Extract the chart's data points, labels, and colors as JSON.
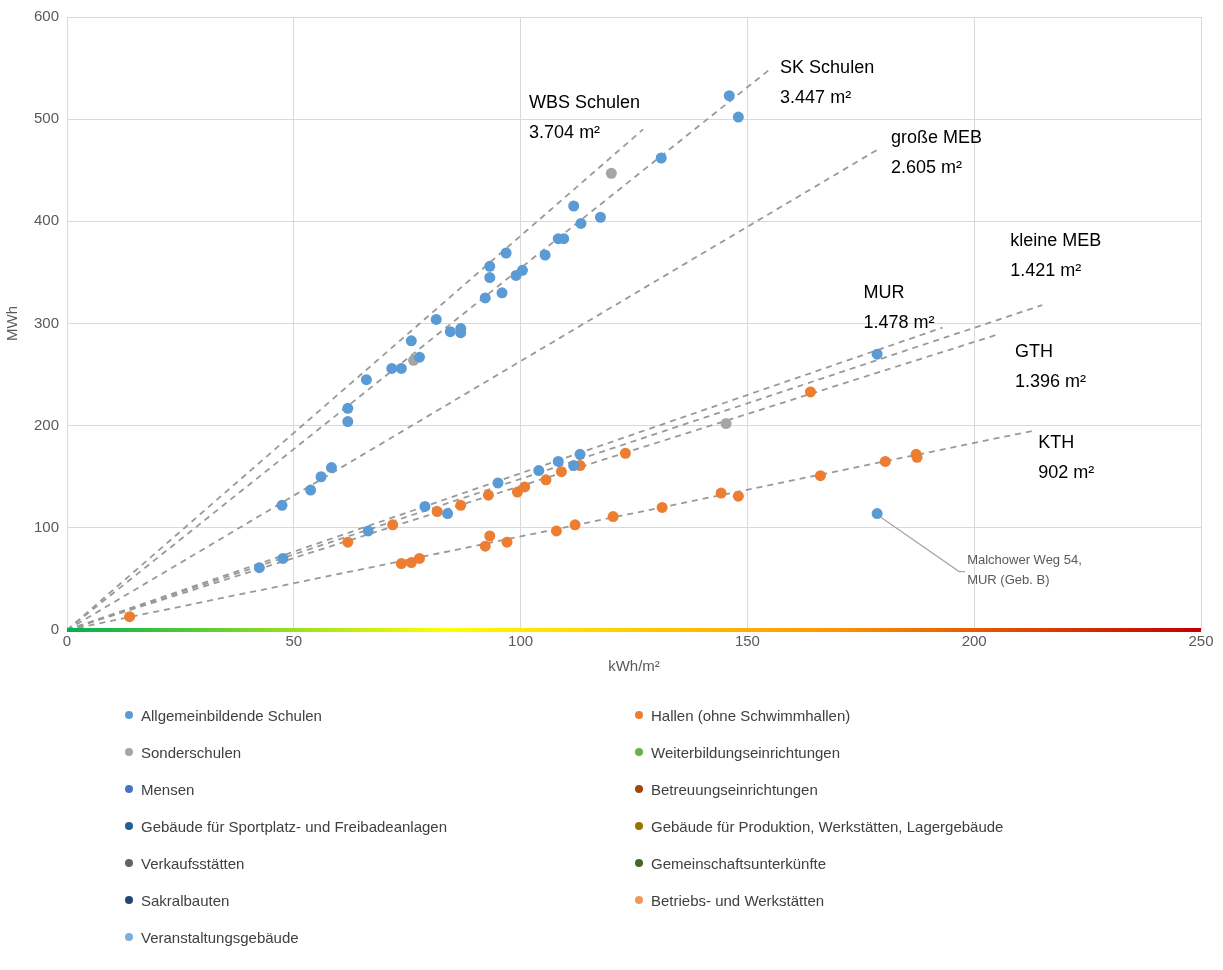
{
  "chart_data": {
    "type": "scatter",
    "xlabel": "kWh/m²",
    "ylabel": "MWh",
    "xlim": [
      0,
      250
    ],
    "xticks": [
      0,
      50,
      100,
      150,
      200,
      250
    ],
    "ylim": [
      0,
      600
    ],
    "yticks": [
      0,
      100,
      200,
      300,
      400,
      500,
      600
    ],
    "grid": true,
    "legend": "bottom",
    "marker": "circle",
    "series": [
      {
        "name": "Allgemeinbildende Schulen",
        "color": "#5b9bd5",
        "x": [
          146,
          148,
          131,
          111.7,
          117.6,
          113.3,
          108.3,
          109.5,
          96.8,
          105.4,
          93.2,
          93.2,
          100.4,
          99,
          92.2,
          95.9,
          81.4,
          84.5,
          86.8,
          86.8,
          75.9,
          77.7,
          71.6,
          73.7,
          66,
          61.9,
          61.9,
          47.4,
          53.7,
          56,
          58.3,
          42.4,
          47.6,
          66.4,
          78.9,
          83.9,
          95,
          104,
          108.3,
          111.7,
          113.1,
          178.6,
          178.6
        ],
        "values": [
          523,
          502,
          462,
          415,
          404,
          398,
          383,
          383,
          369,
          367,
          356,
          345,
          352,
          347,
          325,
          330,
          304,
          292,
          295,
          291,
          283,
          267,
          256,
          256,
          245,
          217,
          204,
          122,
          137,
          150,
          159,
          61,
          70,
          97,
          121,
          114,
          144,
          156,
          165,
          161,
          172,
          270,
          114
        ]
      },
      {
        "name": "Sonderschulen",
        "color": "#a5a5a5",
        "x": [
          120,
          76.4,
          145.3
        ],
        "values": [
          447,
          264,
          202
        ]
      },
      {
        "name": "Mensen",
        "color": "#4472c4"
      },
      {
        "name": "Gebäude für Sportplatz- und Freibadeanlagen",
        "color": "#255e91"
      },
      {
        "name": "Verkaufsstätten",
        "color": "#636363"
      },
      {
        "name": "Sakralbauten",
        "color": "#264478"
      },
      {
        "name": "Veranstaltungsgebäude",
        "color": "#7cafdd"
      },
      {
        "name": "Hallen (ohne Schwimmhallen)",
        "color": "#ed7d31",
        "x": [
          61.9,
          71.8,
          13.8,
          73.7,
          75.9,
          77.7,
          81.6,
          86.8,
          92.9,
          99.3,
          100.9,
          105.6,
          109,
          113.1,
          123.1,
          163.9,
          166.1,
          144.2,
          148,
          131.2,
          120.4,
          112,
          107.9,
          97,
          93.2,
          92.2,
          180.4,
          187.2,
          187.4
        ],
        "values": [
          86,
          103,
          13,
          65,
          66,
          70,
          116,
          122,
          132,
          135,
          140,
          147,
          155,
          161,
          173,
          233,
          151,
          134,
          131,
          120,
          111,
          103,
          97,
          86,
          92,
          82,
          165,
          172,
          169
        ]
      },
      {
        "name": "Weiterbildungseinrichtungen",
        "color": "#70ad47"
      },
      {
        "name": "Betreuungseinrichtungen",
        "color": "#9e480e"
      },
      {
        "name": "Gebäude für Produktion, Werkstätten, Lagergebäude",
        "color": "#997300"
      },
      {
        "name": "Gemeinschaftsunterkünfte",
        "color": "#43682b"
      },
      {
        "name": "Betriebs- und Werkstätten",
        "color": "#f1975a"
      },
      {
        "name": "WBS Schulen\n3.704 m²",
        "type": "line",
        "color": "#999999",
        "line_style": "dashed",
        "marker": "none",
        "x": [
          0,
          127
        ],
        "values": [
          0,
          490
        ]
      },
      {
        "name": "SK Schulen\n3.447 m²",
        "type": "line",
        "color": "#999999",
        "line_style": "dashed",
        "marker": "none",
        "x": [
          0,
          155
        ],
        "values": [
          0,
          549
        ]
      },
      {
        "name": "große MEB\n2.605 m²",
        "type": "line",
        "color": "#999999",
        "line_style": "dashed",
        "marker": "none",
        "x": [
          0,
          179
        ],
        "values": [
          0,
          471
        ]
      },
      {
        "name": "kleine MEB\n1.421 m²",
        "type": "line",
        "color": "#999999",
        "line_style": "dashed",
        "marker": "none",
        "x": [
          0,
          215
        ],
        "values": [
          0,
          318
        ]
      },
      {
        "name": "MUR\n1.478 m²",
        "type": "line",
        "color": "#999999",
        "line_style": "dashed",
        "marker": "none",
        "x": [
          0,
          193
        ],
        "values": [
          0,
          296
        ]
      },
      {
        "name": "GTH\n1.396 m²",
        "type": "line",
        "color": "#999999",
        "line_style": "dashed",
        "marker": "none",
        "x": [
          0,
          205
        ],
        "values": [
          0,
          289
        ]
      },
      {
        "name": "KTH\n902 m²",
        "type": "line",
        "color": "#999999",
        "line_style": "dashed",
        "marker": "none",
        "x": [
          0,
          213
        ],
        "values": [
          0,
          195
        ]
      }
    ],
    "annotations": [
      {
        "text": "Malchower Weg 54,\nMUR (Geb. B)",
        "x": 178.6,
        "y": 114
      }
    ]
  }
}
